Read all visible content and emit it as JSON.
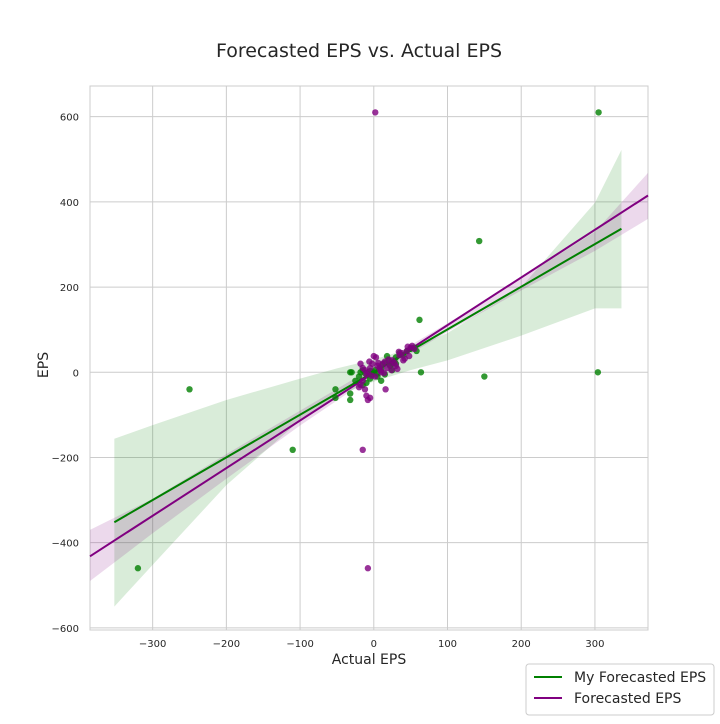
{
  "chart_data": {
    "type": "scatter",
    "title": "Forecasted EPS vs. Actual EPS",
    "xlabel": "Actual EPS",
    "ylabel": "EPS",
    "xlim": [
      -385,
      372
    ],
    "ylim": [
      -605,
      672
    ],
    "x_ticks": [
      -300,
      -200,
      -100,
      0,
      100,
      200,
      300
    ],
    "y_ticks": [
      -600,
      -400,
      -200,
      0,
      200,
      400,
      600
    ],
    "x_tick_labels": [
      "−300",
      "−200",
      "−100",
      "0",
      "100",
      "200",
      "300"
    ],
    "y_tick_labels": [
      "−600",
      "−400",
      "−200",
      "0",
      "200",
      "400",
      "600"
    ],
    "grid": true,
    "legend_placement": "bottom-right outside",
    "series": [
      {
        "name": "My Forecasted EPS",
        "color": "#008000",
        "regression": {
          "x": [
            -352,
            336
          ],
          "y": [
            -352,
            337
          ]
        },
        "ci_band": {
          "x": [
            -352,
            -300,
            -200,
            -100,
            -50,
            0,
            50,
            100,
            200,
            300,
            336
          ],
          "upper": [
            -156,
            -124,
            -65,
            -15,
            9,
            30,
            56,
            92,
            200,
            398,
            522
          ],
          "lower": [
            -550,
            -452,
            -265,
            -113,
            -55,
            -22,
            5,
            28,
            86,
            150,
            150
          ]
        },
        "points": [
          [
            305,
            610
          ],
          [
            143,
            308
          ],
          [
            -250,
            -40
          ],
          [
            -110,
            -182
          ],
          [
            -320,
            -460
          ],
          [
            62,
            123
          ],
          [
            304,
            0
          ],
          [
            150,
            -10
          ],
          [
            64,
            0
          ],
          [
            -52,
            -40
          ],
          [
            -52,
            -60
          ],
          [
            -32,
            -50
          ],
          [
            -32,
            -65
          ],
          [
            -32,
            0
          ],
          [
            -30,
            0
          ],
          [
            -18,
            0
          ],
          [
            -15,
            5
          ],
          [
            -12,
            -2
          ],
          [
            -8,
            0
          ],
          [
            -5,
            3
          ],
          [
            -3,
            -5
          ],
          [
            0,
            0
          ],
          [
            2,
            5
          ],
          [
            5,
            -3
          ],
          [
            8,
            10
          ],
          [
            10,
            6
          ],
          [
            12,
            18
          ],
          [
            15,
            22
          ],
          [
            18,
            38
          ],
          [
            20,
            28
          ],
          [
            22,
            15
          ],
          [
            25,
            20
          ],
          [
            28,
            26
          ],
          [
            30,
            35
          ],
          [
            35,
            45
          ],
          [
            40,
            40
          ],
          [
            45,
            50
          ],
          [
            50,
            55
          ],
          [
            55,
            58
          ],
          [
            58,
            50
          ],
          [
            -20,
            -10
          ],
          [
            -25,
            -20
          ],
          [
            -10,
            -25
          ],
          [
            -5,
            -15
          ],
          [
            5,
            -10
          ],
          [
            15,
            -5
          ],
          [
            25,
            5
          ],
          [
            -15,
            -30
          ],
          [
            10,
            -20
          ],
          [
            30,
            20
          ]
        ]
      },
      {
        "name": "Forecasted EPS",
        "color": "#800080",
        "regression": {
          "x": [
            -385,
            372
          ],
          "y": [
            -432,
            415
          ]
        },
        "ci_band": {
          "x": [
            -385,
            -300,
            -200,
            -100,
            0,
            100,
            200,
            300,
            372
          ],
          "upper": [
            -370,
            -297,
            -192,
            -90,
            12,
            115,
            220,
            330,
            468
          ],
          "lower": [
            -490,
            -378,
            -250,
            -125,
            -8,
            95,
            192,
            285,
            360
          ]
        },
        "points": [
          [
            2,
            610
          ],
          [
            -8,
            -460
          ],
          [
            -15,
            -182
          ],
          [
            -12,
            -40
          ],
          [
            -10,
            -55
          ],
          [
            -8,
            -65
          ],
          [
            -5,
            -60
          ],
          [
            -18,
            -30
          ],
          [
            -15,
            -20
          ],
          [
            -20,
            -35
          ],
          [
            -18,
            20
          ],
          [
            -15,
            10
          ],
          [
            -12,
            5
          ],
          [
            -10,
            -5
          ],
          [
            -8,
            0
          ],
          [
            -5,
            10
          ],
          [
            -3,
            -8
          ],
          [
            0,
            38
          ],
          [
            3,
            35
          ],
          [
            5,
            15
          ],
          [
            8,
            10
          ],
          [
            10,
            0
          ],
          [
            12,
            20
          ],
          [
            15,
            25
          ],
          [
            18,
            10
          ],
          [
            20,
            30
          ],
          [
            22,
            18
          ],
          [
            25,
            28
          ],
          [
            28,
            22
          ],
          [
            30,
            15
          ],
          [
            32,
            8
          ],
          [
            35,
            40
          ],
          [
            38,
            45
          ],
          [
            40,
            28
          ],
          [
            42,
            32
          ],
          [
            45,
            50
          ],
          [
            48,
            38
          ],
          [
            50,
            58
          ],
          [
            52,
            62
          ],
          [
            55,
            55
          ],
          [
            -2,
            20
          ],
          [
            2,
            -10
          ],
          [
            6,
            22
          ],
          [
            14,
            -2
          ],
          [
            24,
            5
          ],
          [
            -6,
            25
          ],
          [
            16,
            -40
          ],
          [
            34,
            48
          ],
          [
            46,
            60
          ],
          [
            9,
            5
          ]
        ]
      }
    ]
  }
}
